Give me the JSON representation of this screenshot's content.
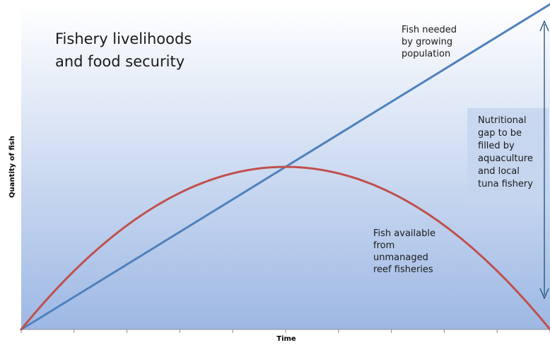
{
  "chart_data": {
    "type": "line",
    "title": "Fishery livelihoods\nand  food security",
    "xlabel": "Time",
    "ylabel": "Quantity of fish",
    "grid": false,
    "legend": "none",
    "x_tick_count": 11,
    "series": [
      {
        "name": "Fish needed by growing population",
        "color": "#4f81bd",
        "shape": "linear",
        "x": [
          0,
          1
        ],
        "y": [
          0,
          1
        ]
      },
      {
        "name": "Fish available from unmanaged reef fisheries",
        "color": "#c0504d",
        "shape": "parabola",
        "x": [
          0,
          0.5,
          1
        ],
        "y": [
          0,
          0.5,
          0
        ]
      }
    ],
    "annotations": {
      "demand_label": "Fish needed\nby growing\npopulation",
      "supply_label": "Fish available\nfrom\nunmanaged\nreef fisheries",
      "gap_label": "Nutritional\ngap to be\nfilled by\naquaculture\nand local\ntuna fishery"
    }
  },
  "colors": {
    "plot_bg_top": "#ffffff",
    "plot_bg_bottom": "#9db8e4",
    "gap_box": "#c6d5ee",
    "arrow": "#1f4e79"
  }
}
